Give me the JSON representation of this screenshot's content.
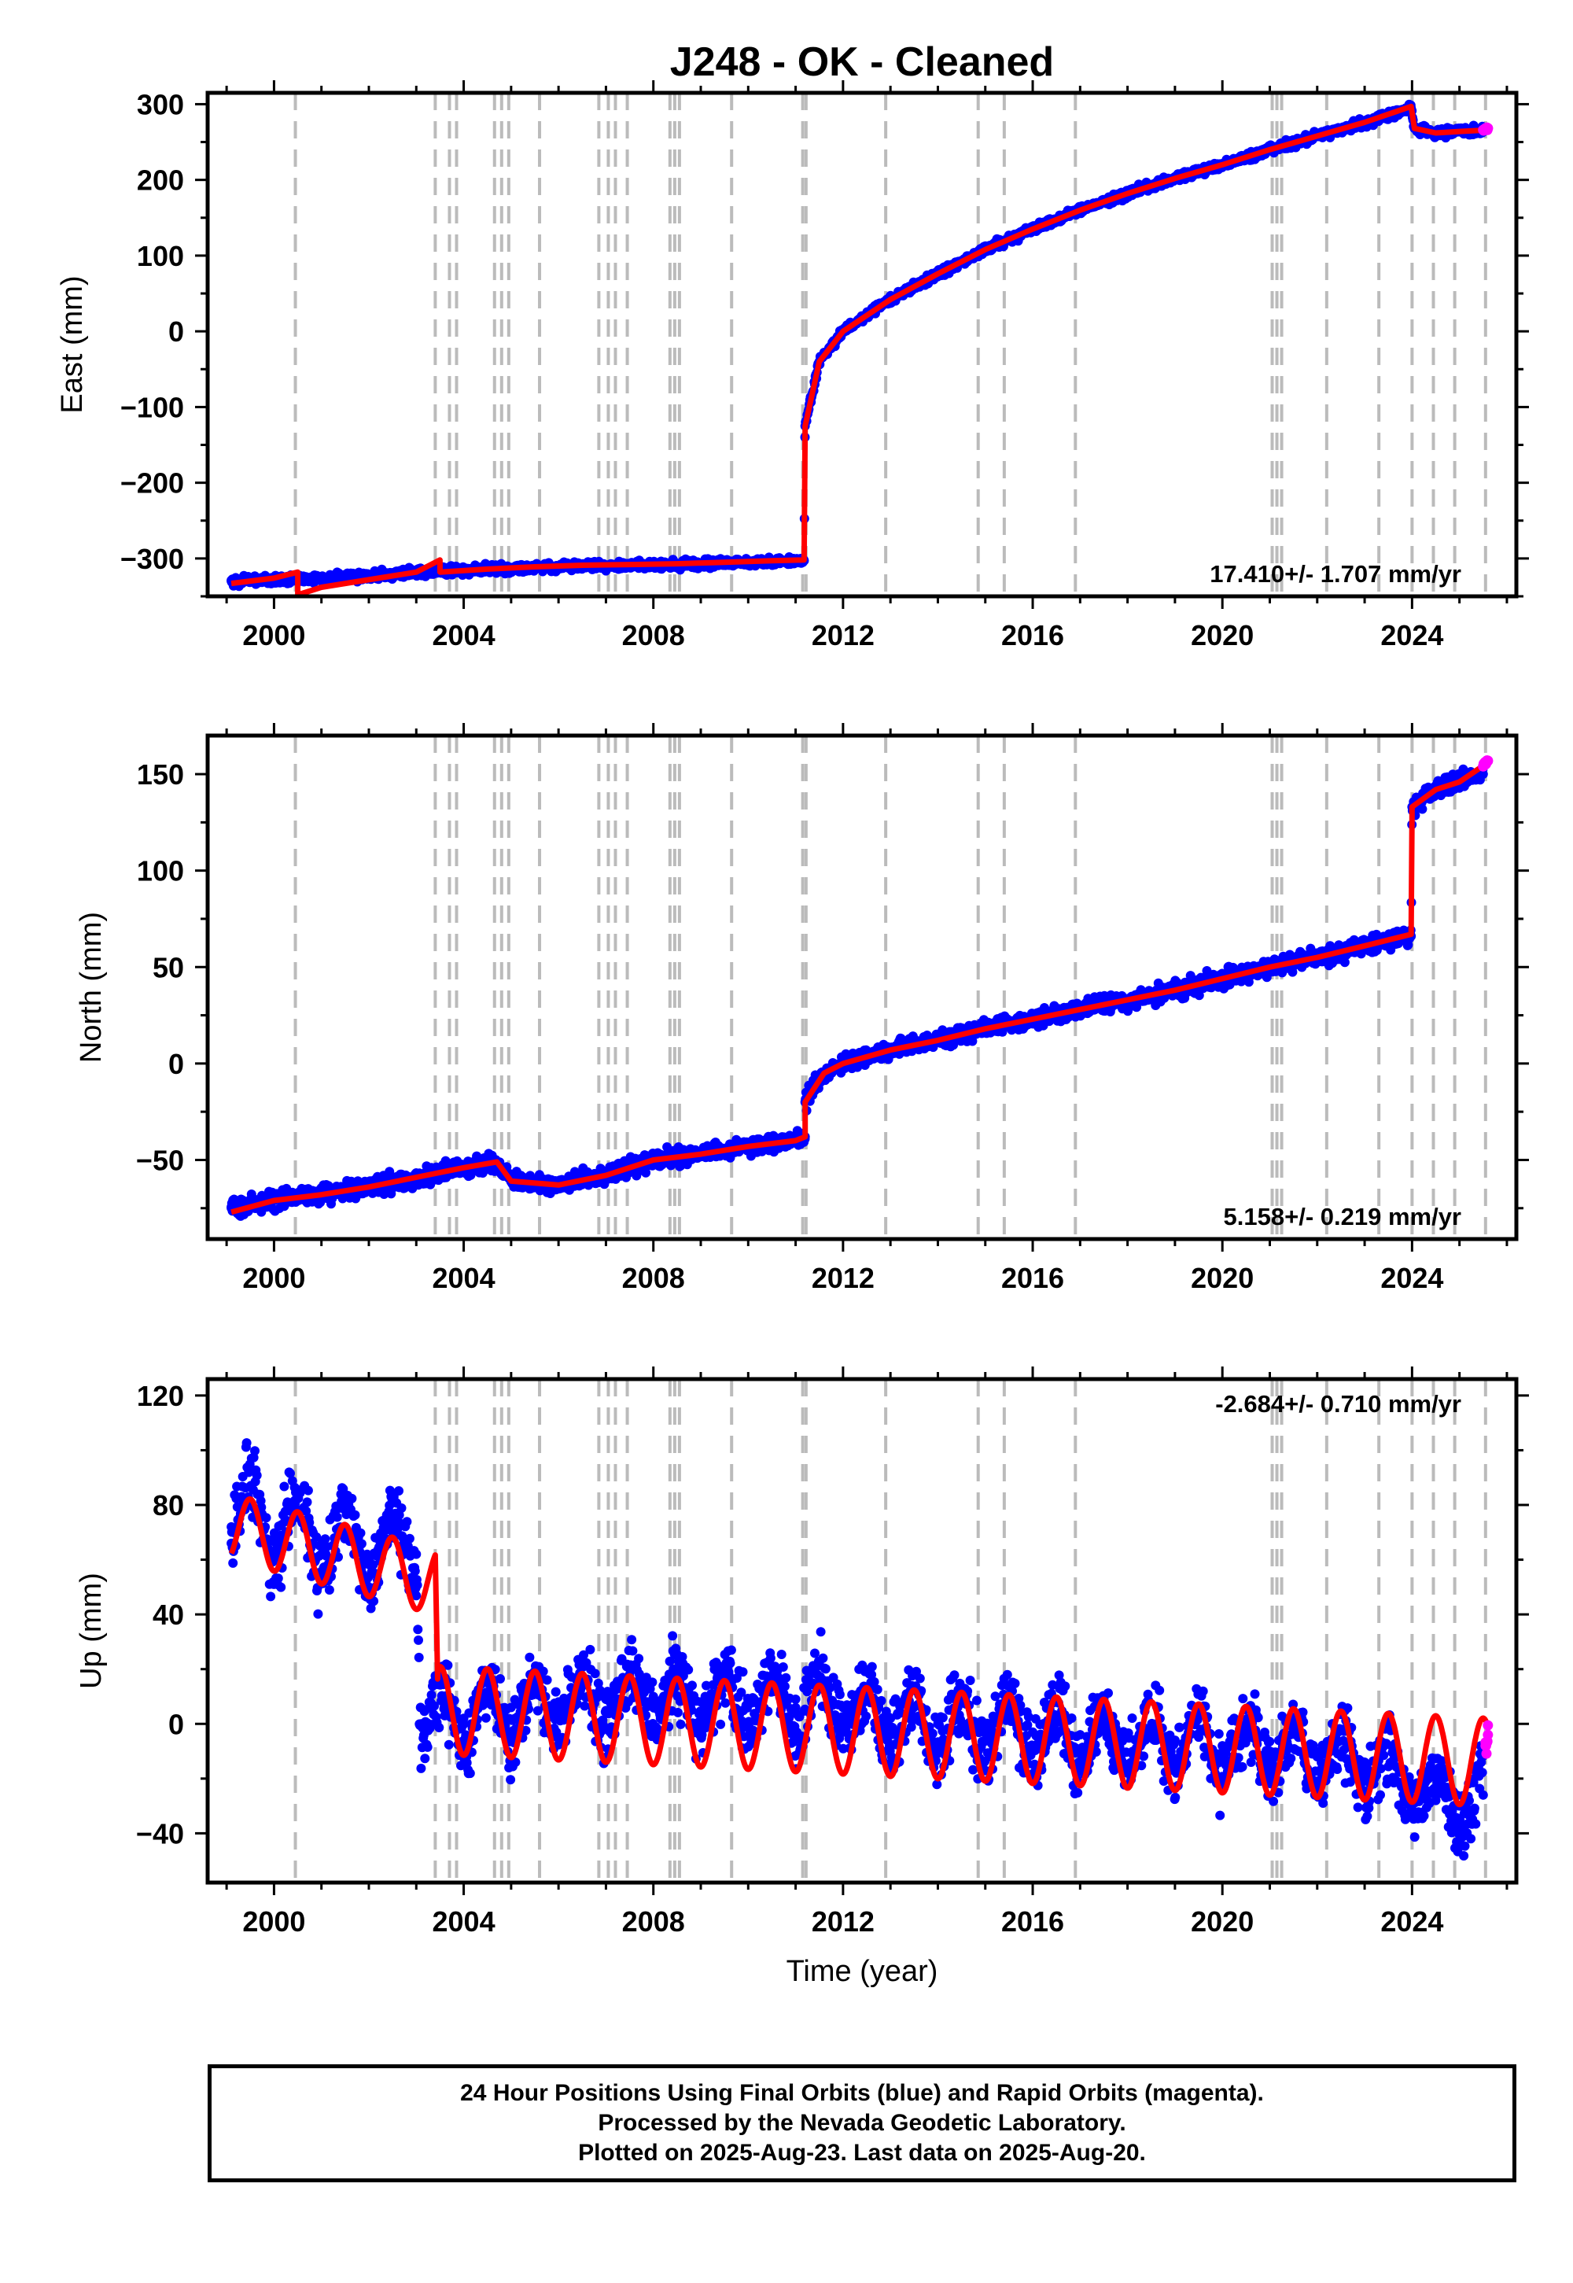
{
  "title": "J248  - OK - Cleaned",
  "colors": {
    "final_orbits": "#0000ff",
    "rapid_orbits": "#ff00ff",
    "model": "#ff0000",
    "event_lines": "#bbbbbb",
    "frame": "#000000"
  },
  "chart_data": [
    {
      "type": "scatter",
      "ylabel": "East (mm)",
      "xlabel": "",
      "xlim": [
        1998.6,
        2026.2
      ],
      "ylim": [
        -350,
        315
      ],
      "xticks": [
        2000,
        2004,
        2008,
        2012,
        2016,
        2020,
        2024
      ],
      "yticks": [
        -300,
        -200,
        -100,
        0,
        100,
        200,
        300
      ],
      "rate_text": "17.410+/- 1.707 mm/yr",
      "rate_position": "bottom-right",
      "series": [
        {
          "role": "final-orbits",
          "x": [
            1999.1,
            2000.0,
            2001.0,
            2002.0,
            2003.0,
            2003.5,
            2004.5,
            2005.5,
            2006.5,
            2007.5,
            2008.5,
            2009.5,
            2010.5,
            2011.18,
            2011.2,
            2011.5,
            2012.0,
            2013.0,
            2014.0,
            2015.0,
            2016.0,
            2017.0,
            2018.0,
            2019.0,
            2020.0,
            2021.0,
            2022.0,
            2023.0,
            2023.98,
            2024.05,
            2024.5,
            2025.0,
            2025.5
          ],
          "y": [
            -330,
            -328,
            -326,
            -323,
            -318,
            -316,
            -314,
            -312,
            -310,
            -309,
            -308,
            -306,
            -304,
            -303,
            -125,
            -40,
            0,
            42,
            76,
            108,
            135,
            160,
            182,
            202,
            220,
            240,
            258,
            276,
            295,
            268,
            262,
            264,
            265
          ]
        },
        {
          "role": "rapid-orbits",
          "x": [
            2025.5,
            2025.6
          ],
          "y": [
            266,
            268
          ]
        },
        {
          "role": "model",
          "x": [
            1999.1,
            2000.0,
            2000.5,
            2000.5,
            2001.0,
            2003.0,
            2003.5,
            2003.5,
            2004.5,
            2005.5,
            2006.5,
            2007.5,
            2008.5,
            2009.5,
            2010.5,
            2011.18,
            2011.2,
            2011.5,
            2012.0,
            2013.0,
            2014.0,
            2015.0,
            2016.0,
            2017.0,
            2018.0,
            2019.0,
            2020.0,
            2021.0,
            2022.0,
            2023.0,
            2023.98,
            2024.05,
            2024.5,
            2025.0,
            2025.6
          ],
          "y": [
            -333,
            -326,
            -318,
            -348,
            -338,
            -318,
            -302,
            -318,
            -314,
            -311,
            -309,
            -308,
            -307,
            -305,
            -303,
            -302,
            -125,
            -40,
            0,
            42,
            76,
            108,
            135,
            160,
            182,
            202,
            220,
            240,
            258,
            276,
            297,
            268,
            262,
            264,
            266
          ]
        }
      ]
    },
    {
      "type": "scatter",
      "ylabel": "North (mm)",
      "xlabel": "",
      "xlim": [
        1998.6,
        2026.2
      ],
      "ylim": [
        -91,
        170
      ],
      "xticks": [
        2000,
        2004,
        2008,
        2012,
        2016,
        2020,
        2024
      ],
      "yticks": [
        -50,
        0,
        50,
        100,
        150
      ],
      "rate_text": "5.158+/- 0.219 mm/yr",
      "rate_position": "bottom-right",
      "series": [
        {
          "role": "final-orbits",
          "x": [
            1999.1,
            2000.0,
            2001.0,
            2002.0,
            2003.0,
            2004.0,
            2004.7,
            2005.0,
            2006.0,
            2007.0,
            2008.0,
            2009.0,
            2010.0,
            2011.0,
            2011.2,
            2011.2,
            2011.6,
            2012.0,
            2013.0,
            2014.0,
            2015.0,
            2016.0,
            2017.0,
            2018.0,
            2019.0,
            2020.0,
            2021.0,
            2022.0,
            2023.0,
            2023.98,
            2024.0,
            2024.5,
            2025.0,
            2025.5
          ],
          "y": [
            -75,
            -71,
            -68,
            -64,
            -59,
            -54,
            -51,
            -61,
            -63,
            -58,
            -50,
            -47,
            -43,
            -40,
            -38,
            -20,
            -5,
            0,
            7,
            12,
            18,
            23,
            28,
            33,
            38,
            44,
            50,
            55,
            61,
            66,
            133,
            142,
            146,
            150
          ]
        },
        {
          "role": "rapid-orbits",
          "x": [
            2025.5,
            2025.6
          ],
          "y": [
            154,
            157
          ]
        },
        {
          "role": "model",
          "x": [
            1999.1,
            2000.0,
            2001.0,
            2002.0,
            2003.0,
            2004.0,
            2004.7,
            2005.0,
            2006.0,
            2007.0,
            2008.0,
            2009.0,
            2010.0,
            2011.0,
            2011.2,
            2011.2,
            2011.6,
            2012.0,
            2013.0,
            2014.0,
            2015.0,
            2016.0,
            2017.0,
            2018.0,
            2019.0,
            2020.0,
            2021.0,
            2022.0,
            2023.0,
            2023.98,
            2024.0,
            2024.5,
            2025.0,
            2025.6
          ],
          "y": [
            -77,
            -71,
            -68,
            -64,
            -59,
            -54,
            -51,
            -61,
            -63,
            -58,
            -50,
            -47,
            -43,
            -40,
            -38,
            -20,
            -5,
            0,
            7,
            12,
            18,
            23,
            28,
            33,
            38,
            44,
            50,
            55,
            61,
            67,
            133,
            142,
            146,
            156
          ]
        }
      ]
    },
    {
      "type": "scatter",
      "ylabel": "Up (mm)",
      "xlabel": "Time (year)",
      "xlim": [
        1998.6,
        2026.2
      ],
      "ylim": [
        -58,
        126
      ],
      "xticks": [
        2000,
        2004,
        2008,
        2012,
        2016,
        2020,
        2024
      ],
      "yticks": [
        -40,
        0,
        40,
        80,
        120
      ],
      "rate_text": "-2.684+/- 0.710 mm/yr",
      "rate_position": "top-right",
      "series": [
        {
          "role": "final-orbits",
          "x": [
            1999.1,
            1999.5,
            2000.0,
            2000.5,
            2001.0,
            2001.5,
            2002.0,
            2002.5,
            2003.0,
            2003.1,
            2003.6,
            2004.0,
            2005.0,
            2006.0,
            2007.0,
            2008.0,
            2009.0,
            2010.0,
            2011.0,
            2012.0,
            2013.0,
            2014.0,
            2015.0,
            2016.0,
            2017.0,
            2018.0,
            2019.0,
            2020.0,
            2021.0,
            2022.0,
            2023.0,
            2024.0,
            2024.5,
            2025.0,
            2025.5
          ],
          "y": [
            72,
            80,
            68,
            76,
            62,
            70,
            60,
            68,
            62,
            0,
            3,
            2,
            6,
            8,
            9,
            10,
            8,
            8,
            9,
            6,
            2,
            0,
            -2,
            -3,
            -4,
            -5,
            -6,
            -8,
            -10,
            -12,
            -14,
            -22,
            -28,
            -30,
            -26
          ]
        },
        {
          "role": "rapid-orbits",
          "x": [
            2025.55,
            2025.6
          ],
          "y": [
            -8,
            -4
          ]
        },
        {
          "role": "model",
          "x": [
            1999.1,
            2003.4,
            2003.45,
            2025.6
          ],
          "y": [
            72,
            52,
            5,
            -14
          ]
        }
      ]
    }
  ],
  "event_years": [
    2000.45,
    2003.4,
    2003.7,
    2003.85,
    2004.65,
    2004.8,
    2004.95,
    2005.6,
    2006.85,
    2007.05,
    2007.2,
    2007.45,
    2008.35,
    2008.45,
    2008.55,
    2009.65,
    2011.15,
    2011.22,
    2012.9,
    2014.85,
    2015.4,
    2016.9,
    2021.05,
    2021.15,
    2021.25,
    2022.2,
    2023.3,
    2024.0,
    2024.45,
    2024.9,
    2025.55
  ],
  "footer": {
    "line1": "24 Hour Positions Using Final Orbits (blue) and Rapid Orbits (magenta).",
    "line2": "Processed by the Nevada Geodetic Laboratory.",
    "line3": "Plotted on 2025-Aug-23. Last data on 2025-Aug-20."
  }
}
